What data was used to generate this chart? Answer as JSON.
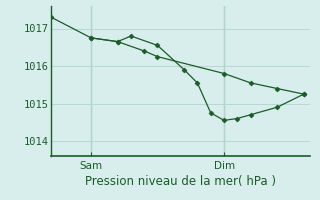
{
  "background_color": "#d8eeed",
  "grid_color": "#b8d8d4",
  "line_color": "#1a5c28",
  "marker_color": "#1a5c28",
  "title": "Pression niveau de la mer( hPa )",
  "ylabel_values": [
    1014,
    1015,
    1016,
    1017
  ],
  "xlim": [
    0.0,
    13.0
  ],
  "ylim": [
    1013.6,
    1017.6
  ],
  "sam_x": 2.0,
  "dim_x": 8.67,
  "line1_x": [
    0.0,
    2.0,
    3.33,
    4.0,
    5.33,
    6.67,
    7.33,
    8.0,
    8.67,
    9.33,
    10.0,
    11.33,
    12.67
  ],
  "line1_y": [
    1017.3,
    1016.75,
    1016.65,
    1016.8,
    1016.55,
    1015.9,
    1015.55,
    1014.75,
    1014.55,
    1014.6,
    1014.7,
    1014.9,
    1015.25
  ],
  "line2_x": [
    2.0,
    3.33,
    4.67,
    5.33,
    8.67,
    10.0,
    11.33,
    12.67
  ],
  "line2_y": [
    1016.75,
    1016.65,
    1016.4,
    1016.25,
    1015.8,
    1015.55,
    1015.4,
    1015.25
  ],
  "tick_color": "#1a5c28",
  "axis_color": "#1a5c28",
  "font_size": 7.5,
  "label_fontsize": 8.5
}
